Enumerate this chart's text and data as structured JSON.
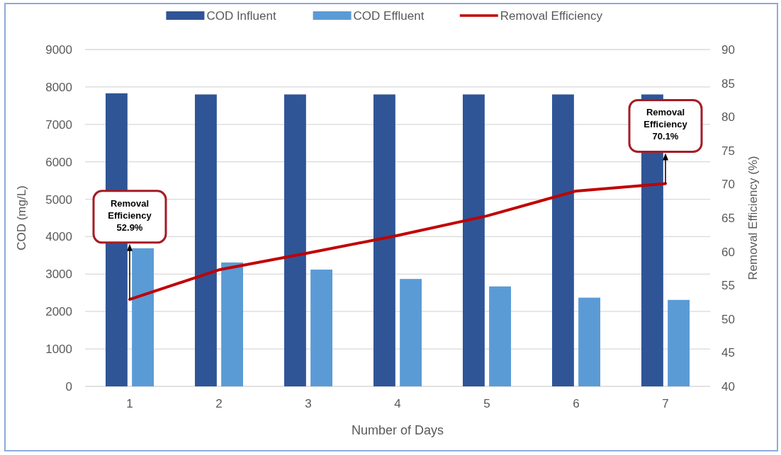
{
  "chart_data": {
    "type": "bar",
    "categories": [
      "1",
      "2",
      "3",
      "4",
      "5",
      "6",
      "7"
    ],
    "series": [
      {
        "name": "COD Influent",
        "color": "#2f5597",
        "values": [
          7830,
          7800,
          7800,
          7800,
          7800,
          7800,
          7800
        ]
      },
      {
        "name": "COD Effluent",
        "color": "#5b9bd5",
        "values": [
          3690,
          3310,
          3120,
          2870,
          2670,
          2370,
          2310
        ]
      },
      {
        "name": "Removal Efficiency",
        "type": "line",
        "axis": "y2",
        "color": "#c00000",
        "values": [
          52.9,
          57.3,
          59.8,
          62.4,
          65.3,
          69.0,
          70.1
        ]
      }
    ],
    "xlabel": "Number of Days",
    "ylabel": "COD (mg/L)",
    "y2label": "Removal Efficiency (%)",
    "ylim": [
      0,
      9000
    ],
    "yticks": [
      0,
      1000,
      2000,
      3000,
      4000,
      5000,
      6000,
      7000,
      8000,
      9000
    ],
    "y2lim": [
      40,
      90
    ],
    "y2ticks": [
      40,
      45,
      50,
      55,
      60,
      65,
      70,
      75,
      80,
      85,
      90
    ],
    "grid": "y",
    "legend": "top",
    "annotations": [
      {
        "text": "Removal Efficiency 52.9%",
        "x": "1"
      },
      {
        "text": "Removal Efficiency 70.1%",
        "x": "7"
      }
    ]
  }
}
